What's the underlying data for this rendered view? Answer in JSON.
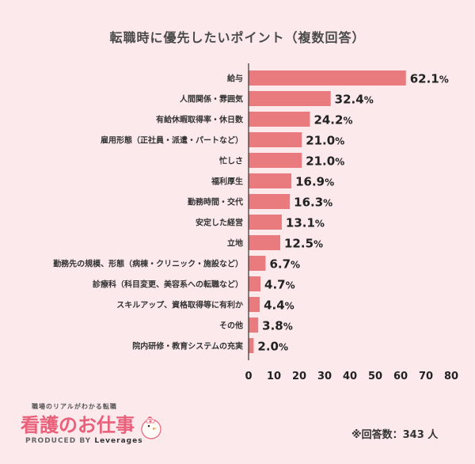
{
  "chart_data": {
    "type": "bar",
    "orientation": "horizontal",
    "title": "転職時に優先したいポイント（複数回答）",
    "categories": [
      "給与",
      "人間関係・雰囲気",
      "有給休暇取得率・休日数",
      "雇用形態（正社員・派遣・パートなど）",
      "忙しさ",
      "福利厚生",
      "勤務時間・交代",
      "安定した経営",
      "立地",
      "勤務先の規模、形態（病棟・クリニック・施設など）",
      "診療科（科目変更、美容系への転職など）",
      "スキルアップ、資格取得等に有利か",
      "その他",
      "院内研修・教育システムの充実"
    ],
    "values": [
      62.1,
      32.4,
      24.2,
      21.0,
      21.0,
      16.9,
      16.3,
      13.1,
      12.5,
      6.7,
      4.7,
      4.4,
      3.8,
      2.0
    ],
    "unit": "%",
    "xlim": [
      0,
      80
    ],
    "xticks": [
      0,
      10,
      20,
      30,
      40,
      50,
      60,
      70,
      80
    ],
    "bar_color": "#e97a7e",
    "grid": false
  },
  "logo": {
    "tagline": "職場のリアルがわかる転職",
    "name": "看護のお仕事",
    "produced_by": "PRODUCED BY",
    "brand": "Leverages"
  },
  "note": "※回答数：343 人"
}
